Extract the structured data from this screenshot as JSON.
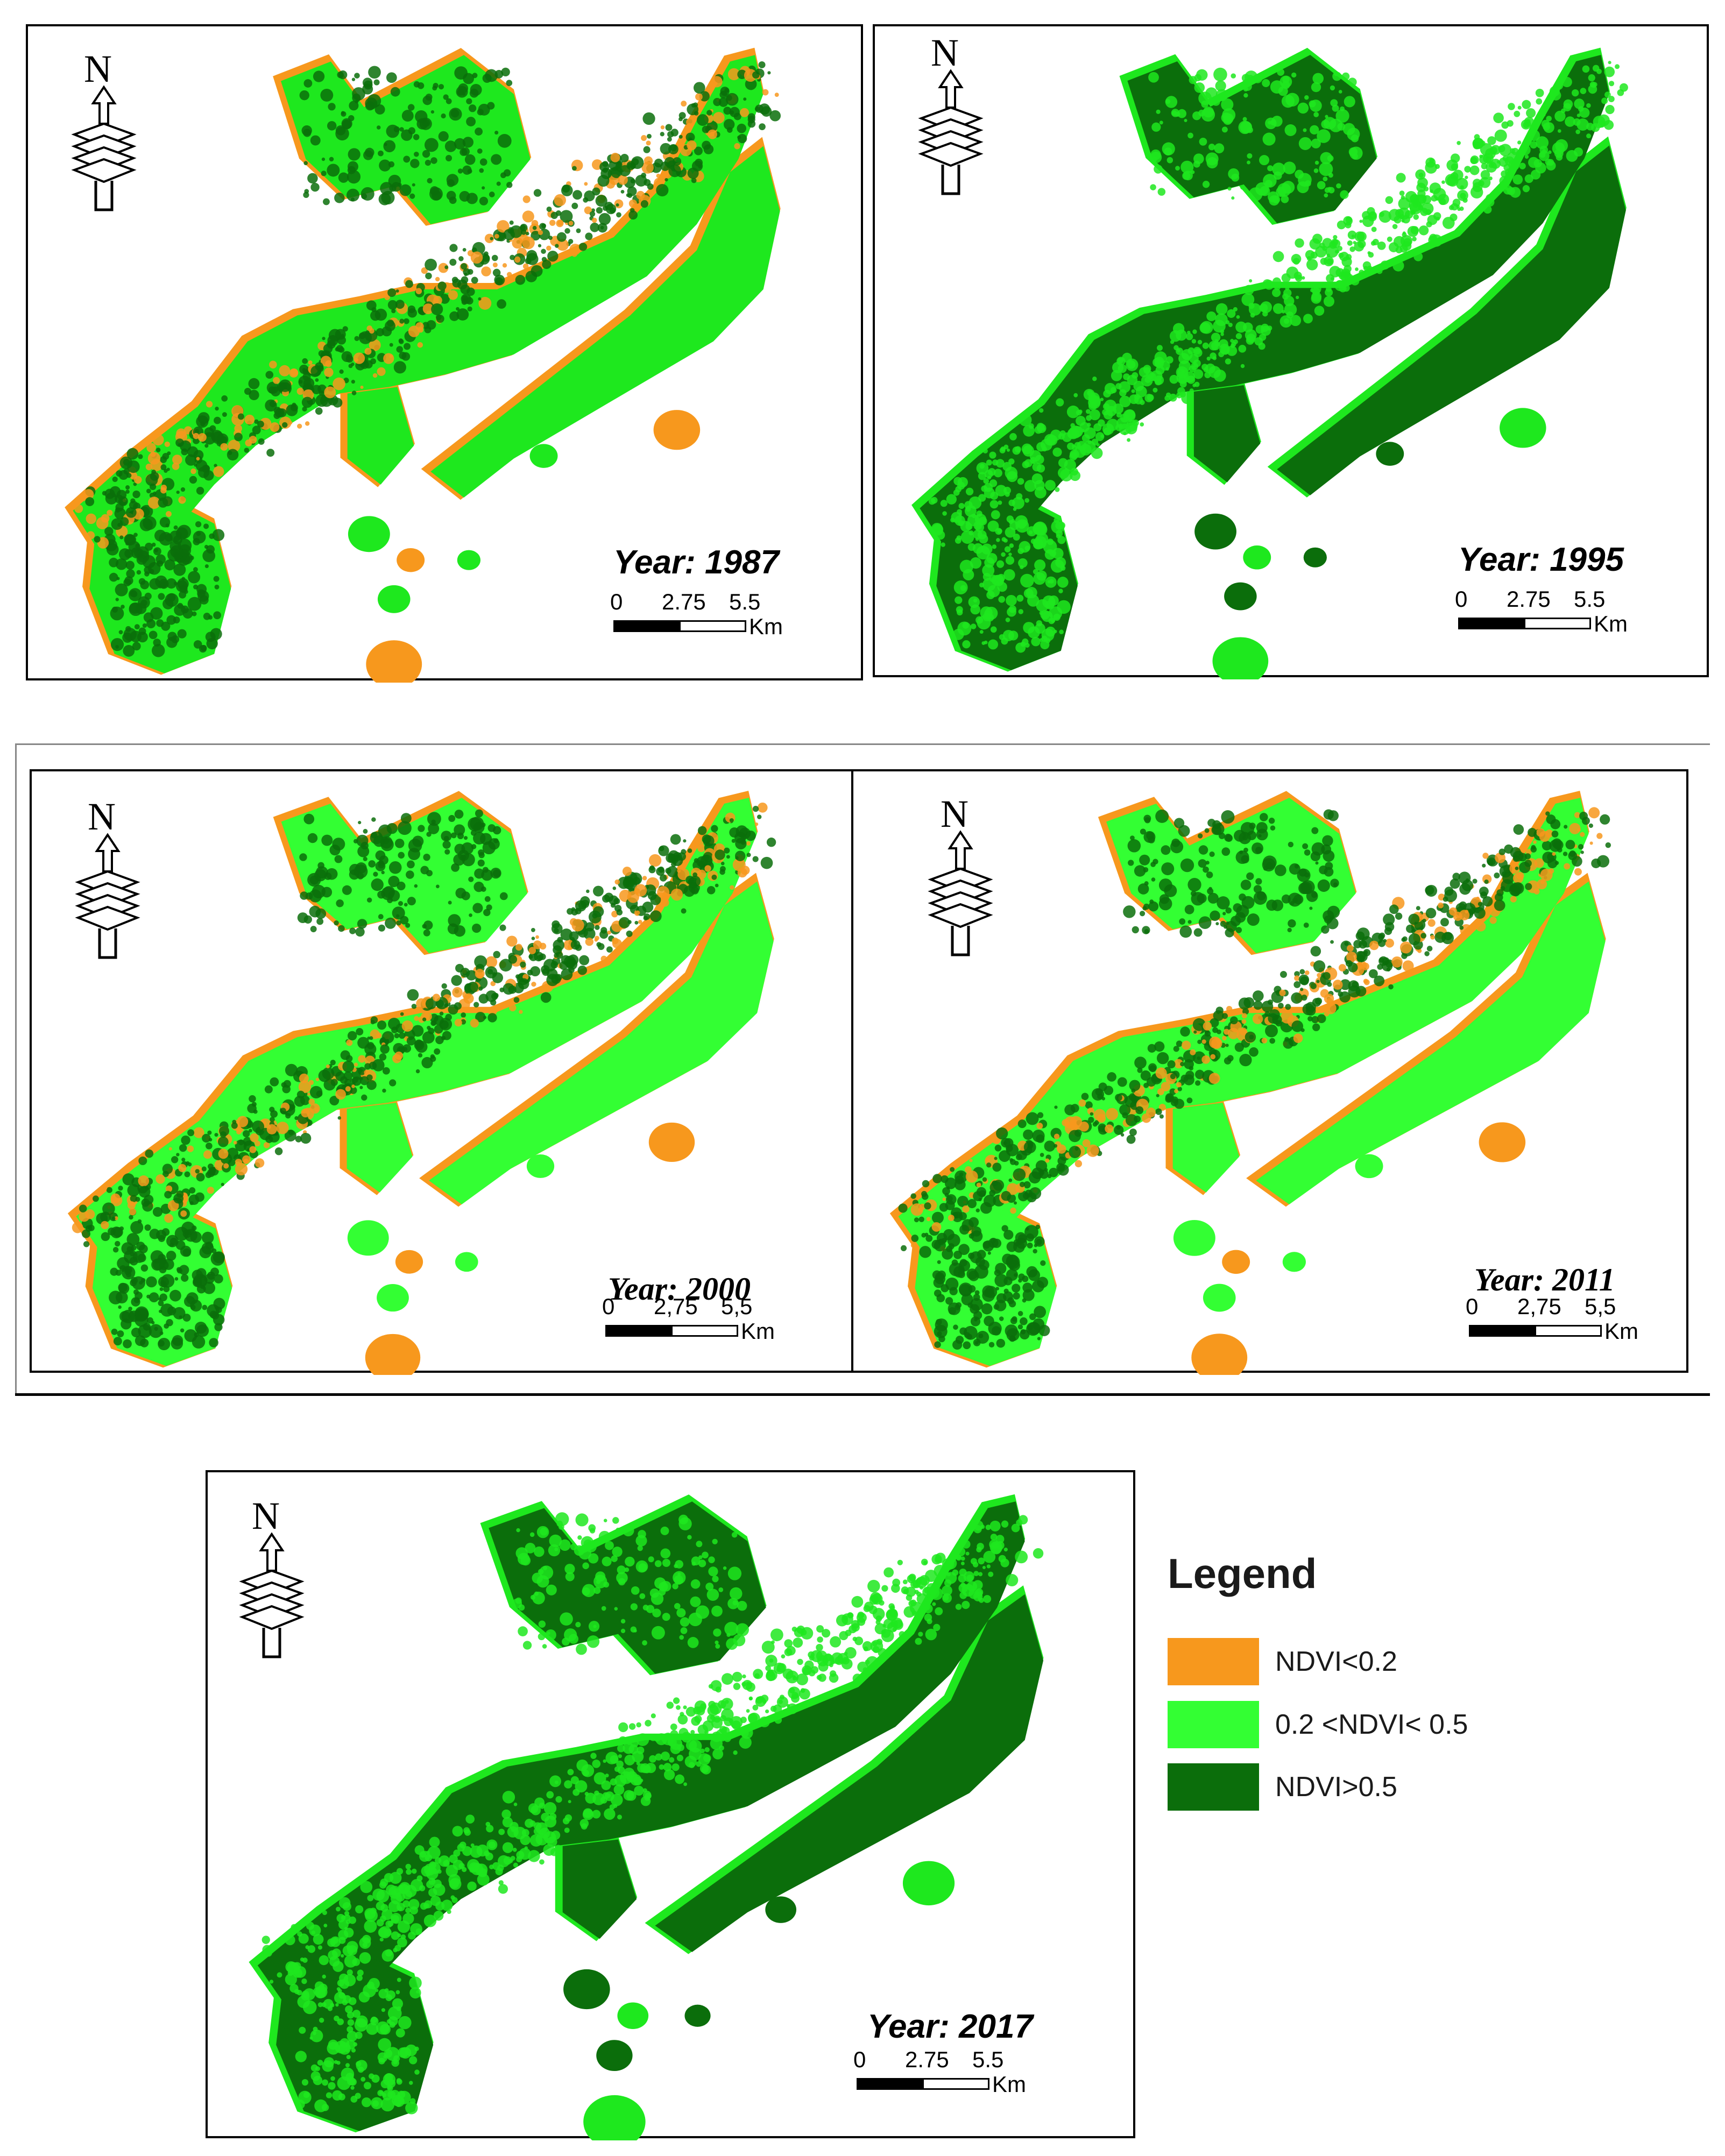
{
  "colors": {
    "low": "#f7981d",
    "mid": "#1ee81e",
    "high": "#0b6e0b",
    "mid_alt": "#33ff33"
  },
  "maps": [
    {
      "year_label": "Year: 1987",
      "scale": {
        "t0": "0",
        "t1": "2.75",
        "t2": "5.5",
        "unit": "Km"
      },
      "dominant": "low_mid"
    },
    {
      "year_label": "Year: 1995",
      "scale": {
        "t0": "0",
        "t1": "2.75",
        "t2": "5.5",
        "unit": "Km"
      },
      "dominant": "high_mid"
    },
    {
      "year_label": "Year: 2000",
      "scale": {
        "t0": "0",
        "t1": "2,75",
        "t2": "5,5",
        "unit": "Km"
      },
      "dominant": "mid_low"
    },
    {
      "year_label": "Year: 2011",
      "scale": {
        "t0": "0",
        "t1": "2,75",
        "t2": "5,5",
        "unit": "Km"
      },
      "dominant": "mid_low"
    },
    {
      "year_label": "Year: 2017",
      "scale": {
        "t0": "0",
        "t1": "2.75",
        "t2": "5.5",
        "unit": "Km"
      },
      "dominant": "high_mid"
    }
  ],
  "north_label": "N",
  "legend": {
    "title": "Legend",
    "items": [
      {
        "label": "NDVI<0.2",
        "color": "#f7981d"
      },
      {
        "label": "0.2 <NDVI< 0.5",
        "color": "#33ff33"
      },
      {
        "label": "NDVI>0.5",
        "color": "#0b6e0b"
      }
    ]
  }
}
